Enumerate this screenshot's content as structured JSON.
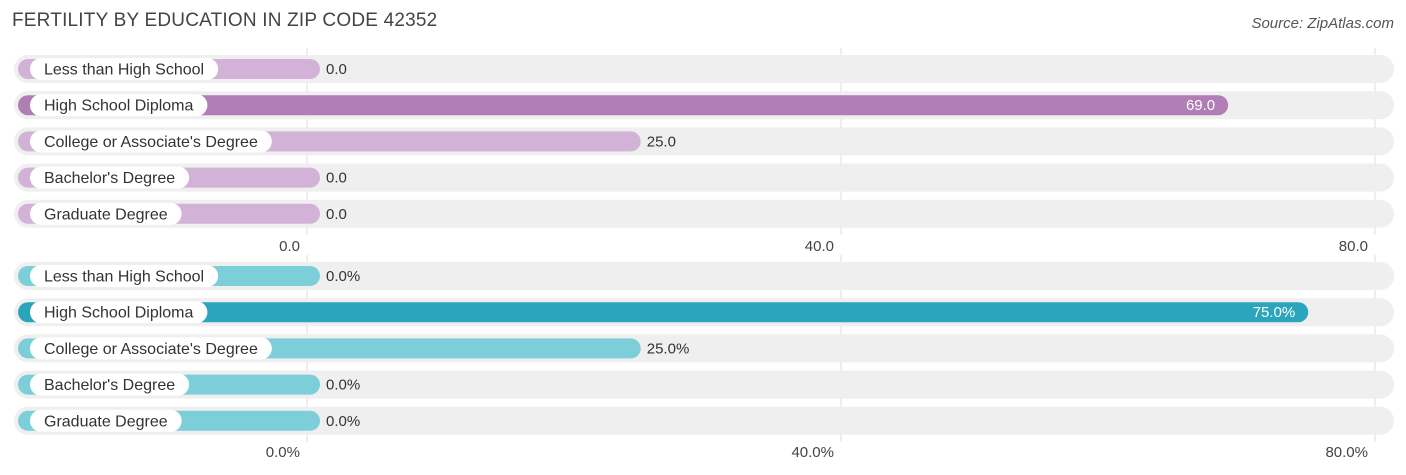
{
  "title": "FERTILITY BY EDUCATION IN ZIP CODE 42352",
  "source": "Source: ZipAtlas.com",
  "colors": {
    "track": "#efefef",
    "grid": "#dddddd",
    "label_bg": "#ffffff",
    "purple_full": "#b07db5",
    "purple_light": "#d3b2d8",
    "teal_full": "#2ba5bc",
    "teal_light": "#7ccfd8"
  },
  "chart_data": [
    {
      "type": "bar",
      "orientation": "horizontal",
      "categories": [
        "Less than High School",
        "High School Diploma",
        "College or Associate's Degree",
        "Bachelor's Degree",
        "Graduate Degree"
      ],
      "values": [
        0.0,
        69.0,
        25.0,
        0.0,
        0.0
      ],
      "value_labels": [
        "0.0",
        "69.0",
        "25.0",
        "0.0",
        "0.0"
      ],
      "xlim": [
        0,
        80
      ],
      "ticks": [
        0,
        40,
        80
      ],
      "tick_labels": [
        "0.0",
        "40.0",
        "80.0"
      ],
      "grid": true
    },
    {
      "type": "bar",
      "orientation": "horizontal",
      "categories": [
        "Less than High School",
        "High School Diploma",
        "College or Associate's Degree",
        "Bachelor's Degree",
        "Graduate Degree"
      ],
      "values": [
        0.0,
        75.0,
        25.0,
        0.0,
        0.0
      ],
      "value_labels": [
        "0.0%",
        "75.0%",
        "25.0%",
        "0.0%",
        "0.0%"
      ],
      "xlim": [
        0,
        80
      ],
      "ticks": [
        0,
        40,
        80
      ],
      "tick_labels": [
        "0.0%",
        "40.0%",
        "80.0%"
      ],
      "grid": true
    }
  ]
}
